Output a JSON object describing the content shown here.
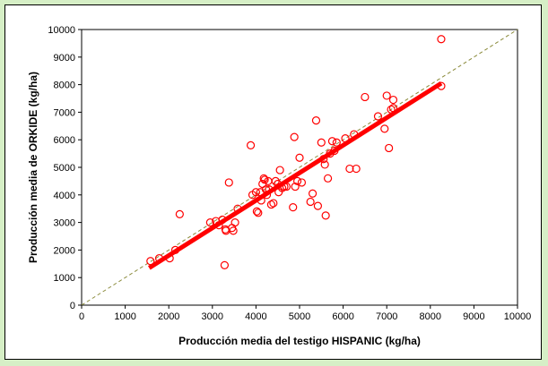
{
  "chart_data": {
    "type": "scatter",
    "title": "",
    "xlabel": "Producción media del testigo HISPANIC (kg/ha)",
    "ylabel": "Producción media de ORKIDE  (kg/ha)",
    "xlim": [
      0,
      10000
    ],
    "ylim": [
      0,
      10000
    ],
    "x_ticks": [
      "0",
      "1000",
      "2000",
      "3000",
      "4000",
      "5000",
      "6000",
      "7000",
      "8000",
      "9000",
      "10000"
    ],
    "y_ticks": [
      "0",
      "1000",
      "2000",
      "3000",
      "4000",
      "5000",
      "6000",
      "7000",
      "8000",
      "9000",
      "10000"
    ],
    "grid": false,
    "legend": "none",
    "colors": {
      "points": "#ff0000",
      "regression": "#ff0000",
      "reference": "#8a8a3a",
      "background": "#d6efc6"
    },
    "series": [
      {
        "kind": "points",
        "x": [
          1580,
          1780,
          2020,
          2150,
          2250,
          2950,
          3080,
          3150,
          3230,
          3280,
          3300,
          3310,
          3380,
          3450,
          3480,
          3520,
          3580,
          3880,
          3920,
          4000,
          4020,
          4050,
          4100,
          4120,
          4150,
          4180,
          4200,
          4230,
          4250,
          4280,
          4300,
          4350,
          4400,
          4450,
          4500,
          4520,
          4550,
          4600,
          4650,
          4700,
          4850,
          4880,
          4900,
          4950,
          5000,
          5050,
          5250,
          5300,
          5380,
          5420,
          5500,
          5550,
          5580,
          5600,
          5650,
          5700,
          5750,
          5800,
          5850,
          6050,
          6150,
          6250,
          6300,
          6500,
          6800,
          6950,
          7000,
          7050,
          7100,
          7150,
          7150,
          8250,
          8250
        ],
        "y": [
          1600,
          1700,
          1700,
          2000,
          3300,
          3000,
          3050,
          2900,
          3100,
          1450,
          2750,
          2700,
          4450,
          2800,
          2700,
          3000,
          3500,
          5800,
          4000,
          4100,
          3400,
          3350,
          4100,
          3800,
          4400,
          4600,
          4550,
          4200,
          4000,
          4500,
          4200,
          3650,
          3700,
          4500,
          4400,
          4100,
          4900,
          4250,
          4300,
          4300,
          3550,
          6100,
          4300,
          4500,
          5350,
          4450,
          3750,
          4050,
          6700,
          3600,
          5900,
          5300,
          5100,
          3250,
          4600,
          5500,
          5950,
          5600,
          5900,
          6050,
          4950,
          6200,
          4950,
          7550,
          6850,
          6400,
          7600,
          5700,
          7100,
          7450,
          7150,
          9650,
          7950
        ]
      },
      {
        "kind": "regression",
        "x": [
          1550,
          8250
        ],
        "y": [
          1350,
          8050
        ]
      },
      {
        "kind": "reference",
        "x": [
          0,
          10000
        ],
        "y": [
          0,
          10000
        ]
      }
    ]
  }
}
